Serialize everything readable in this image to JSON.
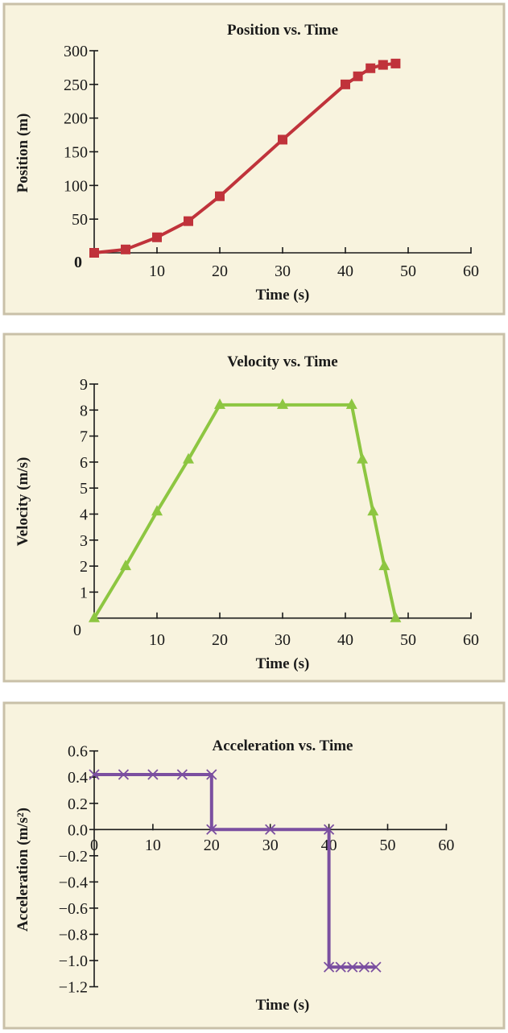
{
  "chart_data": [
    {
      "type": "line",
      "title": "Position vs. Time",
      "xlabel": "Time (s)",
      "ylabel": "Position (m)",
      "xlim": [
        0,
        60
      ],
      "ylim": [
        0,
        300
      ],
      "x_ticks": [
        "10",
        "20",
        "30",
        "40",
        "50",
        "60"
      ],
      "y_ticks": [
        "50",
        "100",
        "150",
        "200",
        "250",
        "300"
      ],
      "origin_label": "0",
      "grid": false,
      "marker": "square",
      "color": "#c0333b",
      "series": [
        {
          "x": [
            0,
            5,
            10,
            15,
            20,
            30,
            40,
            42,
            44,
            46,
            48
          ],
          "y": [
            0,
            5,
            23,
            47,
            84,
            168,
            250,
            262,
            274,
            279,
            281
          ]
        }
      ]
    },
    {
      "type": "line",
      "title": "Velocity vs. Time",
      "xlabel": "Time (s)",
      "ylabel": "Velocity (m/s)",
      "xlim": [
        0,
        60
      ],
      "ylim": [
        0,
        9
      ],
      "x_ticks": [
        "10",
        "20",
        "30",
        "40",
        "50",
        "60"
      ],
      "y_ticks": [
        "1",
        "2",
        "3",
        "4",
        "5",
        "6",
        "7",
        "8",
        "9"
      ],
      "origin_label": "0",
      "grid": false,
      "marker": "triangle",
      "color": "#8dc641",
      "series": [
        {
          "x": [
            0,
            5,
            10,
            15,
            20,
            30,
            41,
            42.7,
            44.4,
            46.2,
            48
          ],
          "y": [
            0,
            2.0,
            4.1,
            6.1,
            8.2,
            8.2,
            8.2,
            6.1,
            4.1,
            2.0,
            0
          ]
        }
      ]
    },
    {
      "type": "line",
      "title": "Acceleration vs. Time",
      "xlabel": "Time (s)",
      "ylabel": "Acceleration (m/s²)",
      "xlim": [
        0,
        60
      ],
      "ylim": [
        -1.2,
        0.6
      ],
      "x_ticks": [
        "0",
        "10",
        "20",
        "30",
        "40",
        "50",
        "60"
      ],
      "y_ticks": [
        "−1.2",
        "−1.0",
        "−0.8",
        "−0.6",
        "−0.4",
        "−0.2",
        "0.0",
        "0.2",
        "0.4",
        "0.6"
      ],
      "grid": false,
      "marker": "x",
      "color": "#7b4fa0",
      "series": [
        {
          "x": [
            0,
            5,
            10,
            15,
            20,
            20,
            30,
            40,
            40,
            42,
            44,
            46,
            48
          ],
          "y": [
            0.42,
            0.42,
            0.42,
            0.42,
            0.42,
            0,
            0,
            0,
            -1.05,
            -1.05,
            -1.05,
            -1.05,
            -1.05
          ]
        }
      ]
    }
  ]
}
